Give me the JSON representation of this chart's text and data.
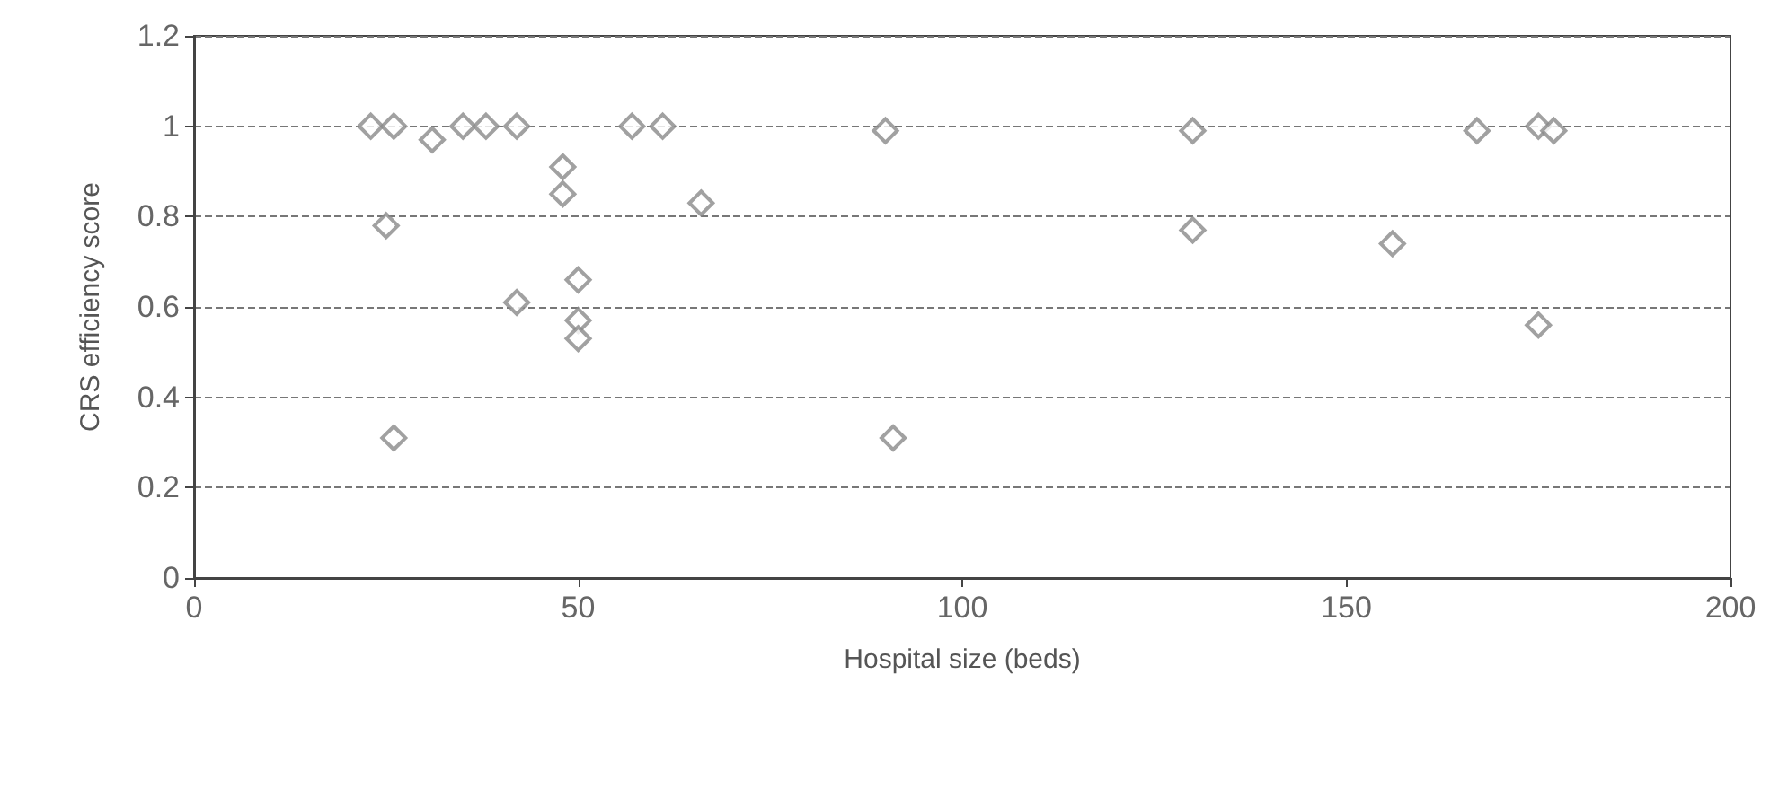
{
  "chart_data": {
    "type": "scatter",
    "xlabel": "Hospital size (beds)",
    "ylabel": "CRS efficiency score",
    "series": [
      {
        "color": "#8a8a8a",
        "x": [
          23,
          26,
          31,
          35,
          38,
          42,
          57,
          61,
          48,
          48,
          66,
          25,
          50,
          42,
          50,
          50,
          26,
          90,
          130,
          130,
          91,
          167,
          175,
          177,
          156,
          175
        ],
        "values": [
          1.0,
          1.0,
          0.97,
          1.0,
          1.0,
          1.0,
          1.0,
          1.0,
          0.91,
          0.85,
          0.83,
          0.78,
          0.66,
          0.61,
          0.57,
          0.53,
          0.31,
          0.99,
          0.99,
          0.77,
          0.31,
          0.99,
          1.0,
          0.99,
          0.74,
          0.56
        ]
      }
    ],
    "xlim": [
      0,
      200
    ],
    "xticks": [
      0,
      50,
      100,
      150,
      200
    ],
    "ylim": [
      0,
      1.2
    ],
    "yticks": [
      0,
      0.2,
      0.4,
      0.6,
      0.8,
      1,
      1.2
    ],
    "grid": "y",
    "marker": "diamond"
  }
}
